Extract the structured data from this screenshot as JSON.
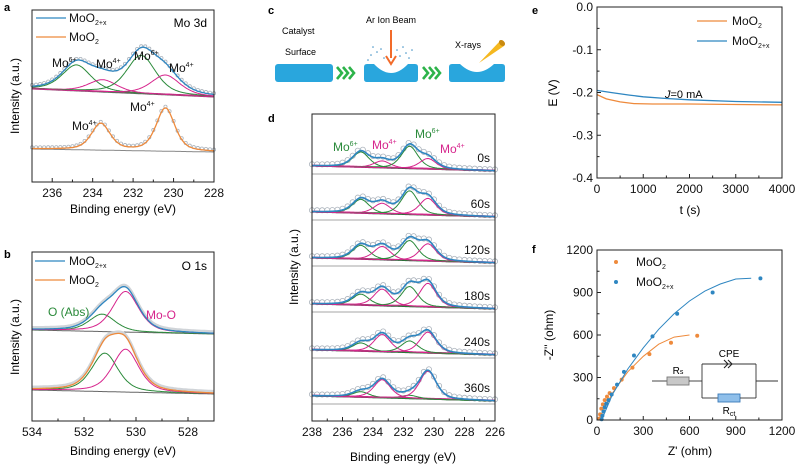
{
  "colors": {
    "blue": "#2e86c1",
    "orange": "#ee8a3c",
    "green": "#2a8a3a",
    "magenta": "#d6248c",
    "baseline": "#666666",
    "circle": "#aab2bb",
    "slab": "#29a6dd",
    "chevron": "#2db34a",
    "beam": "#f26b2a",
    "xray": "#f5b81f"
  },
  "chart_data": [
    {
      "panel": "a",
      "type": "line",
      "title": "Mo 3d",
      "xlabel": "Binding energy (eV)",
      "ylabel": "Intensity (a.u.)",
      "xlim": [
        237,
        228
      ],
      "xticks": [
        236,
        234,
        232,
        230,
        228
      ],
      "legend": {
        "position": "top-left",
        "entries": [
          {
            "name": "MoO2+x",
            "base": "MoO",
            "sub": "2+x",
            "color": "blue"
          },
          {
            "name": "MoO2",
            "base": "MoO",
            "sub": "2",
            "color": "orange"
          }
        ]
      },
      "annotations": [
        {
          "text": "Mo",
          "sup": "6+",
          "x": 234.9,
          "curve": "top"
        },
        {
          "text": "Mo",
          "sup": "4+",
          "x": 233.4,
          "curve": "top"
        },
        {
          "text": "Mo",
          "sup": "6+",
          "x": 231.6,
          "curve": "top"
        },
        {
          "text": "Mo",
          "sup": "4+",
          "x": 229.8,
          "curve": "top"
        },
        {
          "text": "Mo",
          "sup": "4+",
          "x": 233.8,
          "curve": "bottom"
        },
        {
          "text": "Mo",
          "sup": "4+",
          "x": 230.9,
          "curve": "bottom"
        }
      ],
      "stacks": [
        {
          "name": "MoO2+x",
          "fit_color": "blue",
          "peaks": [
            {
              "state": "Mo6+",
              "center": 234.8,
              "height": 0.42,
              "color": "green"
            },
            {
              "state": "Mo4+",
              "center": 233.5,
              "height": 0.2,
              "color": "magenta"
            },
            {
              "state": "Mo6+",
              "center": 231.6,
              "height": 0.62,
              "color": "green"
            },
            {
              "state": "Mo4+",
              "center": 230.4,
              "height": 0.32,
              "color": "magenta"
            }
          ]
        },
        {
          "name": "MoO2",
          "fit_color": "orange",
          "peaks": [
            {
              "state": "Mo4+",
              "center": 233.6,
              "height": 0.48,
              "color": "orange"
            },
            {
              "state": "Mo4+",
              "center": 230.4,
              "height": 0.78,
              "color": "orange"
            }
          ]
        }
      ]
    },
    {
      "panel": "b",
      "type": "line",
      "title": "O 1s",
      "xlabel": "Binding energy (eV)",
      "ylabel": "Intensity (a.u.)",
      "xlim": [
        534,
        527
      ],
      "xticks": [
        534,
        532,
        530,
        528
      ],
      "legend": {
        "position": "top-left",
        "entries": [
          {
            "name": "MoO2+x",
            "base": "MoO",
            "sub": "2+x",
            "color": "blue"
          },
          {
            "name": "MoO2",
            "base": "MoO",
            "sub": "2",
            "color": "orange"
          }
        ]
      },
      "annotations": [
        {
          "text": "O (Abs)",
          "color": "green"
        },
        {
          "text": "Mo-O",
          "color": "magenta"
        }
      ],
      "stacks": [
        {
          "name": "MoO2+x",
          "fit_color": "blue",
          "peaks": [
            {
              "state": "O (Abs)",
              "center": 531.3,
              "height": 0.3,
              "color": "green"
            },
            {
              "state": "Mo-O",
              "center": 530.4,
              "height": 0.7,
              "color": "magenta"
            }
          ]
        },
        {
          "name": "MoO2",
          "fit_color": "orange",
          "peaks": [
            {
              "state": "O (Abs)",
              "center": 531.2,
              "height": 0.7,
              "color": "green"
            },
            {
              "state": "Mo-O",
              "center": 530.4,
              "height": 0.78,
              "color": "magenta"
            }
          ]
        }
      ]
    },
    {
      "panel": "d",
      "type": "line",
      "xlabel": "Binding energy (eV)",
      "ylabel": "Intensity (a.u.)",
      "xlim": [
        238,
        226
      ],
      "xticks": [
        238,
        236,
        234,
        232,
        230,
        228,
        226
      ],
      "annotations": [
        {
          "text": "Mo",
          "sup": "6+",
          "color": "green"
        },
        {
          "text": "Mo",
          "sup": "4+",
          "color": "magenta"
        },
        {
          "text": "Mo",
          "sup": "6+",
          "color": "green"
        },
        {
          "text": "Mo",
          "sup": "4+",
          "color": "magenta"
        }
      ],
      "series": [
        {
          "label": "0s",
          "mo6_a": 0.55,
          "mo4_a": 0.25,
          "mo6_b": 0.8,
          "mo4_b": 0.38
        },
        {
          "label": "60s",
          "mo6_a": 0.5,
          "mo4_a": 0.38,
          "mo6_b": 0.85,
          "mo4_b": 0.6
        },
        {
          "label": "120s",
          "mo6_a": 0.5,
          "mo4_a": 0.48,
          "mo6_b": 0.72,
          "mo4_b": 0.62
        },
        {
          "label": "180s",
          "mo6_a": 0.4,
          "mo4_a": 0.6,
          "mo6_b": 0.72,
          "mo4_b": 0.85
        },
        {
          "label": "240s",
          "mo6_a": 0.3,
          "mo4_a": 0.62,
          "mo6_b": 0.42,
          "mo4_b": 0.75
        },
        {
          "label": "360s",
          "mo6_a": 0.2,
          "mo4_a": 0.65,
          "mo6_b": 0.12,
          "mo4_b": 1.0
        }
      ]
    },
    {
      "panel": "e",
      "type": "line",
      "xlabel": "t (s)",
      "ylabel": "E (V)",
      "xlim": [
        0,
        4000
      ],
      "ylim": [
        -0.4,
        0.0
      ],
      "xticks": [
        0,
        1000,
        2000,
        3000,
        4000
      ],
      "yticks": [
        0.0,
        -0.1,
        -0.2,
        -0.3,
        -0.4
      ],
      "ytick_labels": [
        "0.0",
        "-0.1",
        "-0.2",
        "-0.3",
        "-0.4"
      ],
      "annotation": {
        "italic": "J",
        "text": "=0 mA"
      },
      "legend": {
        "position": "top-right",
        "entries": [
          {
            "name": "MoO2",
            "base": "MoO",
            "sub": "2",
            "color": "orange"
          },
          {
            "name": "MoO2+x",
            "base": "MoO",
            "sub": "2+x",
            "color": "blue"
          }
        ]
      },
      "series": [
        {
          "name": "MoO2",
          "color": "orange",
          "x": [
            0,
            200,
            500,
            800,
            1200,
            2000,
            3000,
            4000
          ],
          "y": [
            -0.205,
            -0.215,
            -0.222,
            -0.226,
            -0.227,
            -0.227,
            -0.228,
            -0.229
          ]
        },
        {
          "name": "MoO2+x",
          "color": "blue",
          "x": [
            0,
            300,
            700,
            1000,
            1500,
            2000,
            3000,
            4000
          ],
          "y": [
            -0.195,
            -0.2,
            -0.206,
            -0.21,
            -0.214,
            -0.217,
            -0.221,
            -0.223
          ]
        }
      ]
    },
    {
      "panel": "f",
      "type": "scatter",
      "xlabel": "Z' (ohm)",
      "ylabel": "-Z'' (ohm)",
      "xlim": [
        0,
        1200
      ],
      "ylim": [
        0,
        1200
      ],
      "xticks": [
        0,
        300,
        600,
        900,
        1200
      ],
      "yticks": [
        0,
        300,
        600,
        900,
        1200
      ],
      "legend": {
        "position": "top-left",
        "entries": [
          {
            "name": "MoO2",
            "base": "MoO",
            "sub": "2",
            "color": "orange"
          },
          {
            "name": "MoO2+x",
            "base": "MoO",
            "sub": "2+x",
            "color": "blue"
          }
        ]
      },
      "inset": {
        "resistor_s": "R",
        "resistor_s_sub": "s",
        "cpe": "CPE",
        "resistor_ct": "R",
        "resistor_ct_sub": "ct"
      },
      "series": [
        {
          "name": "MoO2",
          "color": "orange",
          "x": [
            15,
            20,
            28,
            38,
            50,
            65,
            82,
            110,
            160,
            230,
            340,
            480,
            650
          ],
          "y": [
            10,
            40,
            80,
            110,
            140,
            165,
            190,
            225,
            285,
            370,
            465,
            545,
            595
          ],
          "fit": {
            "x": [
              10,
              100,
              200,
              300,
              400,
              500,
              600
            ],
            "y": [
              0,
              190,
              340,
              450,
              535,
              585,
              600
            ]
          }
        },
        {
          "name": "MoO2+x",
          "color": "blue",
          "x": [
            30,
            35,
            42,
            50,
            60,
            75,
            95,
            130,
            175,
            240,
            360,
            520,
            750,
            1060
          ],
          "y": [
            5,
            30,
            60,
            90,
            115,
            140,
            180,
            250,
            340,
            455,
            590,
            750,
            900,
            1000
          ],
          "fit": {
            "x": [
              30,
              100,
              200,
              300,
              400,
              500,
              600,
              700,
              800,
              900,
              1000
            ],
            "y": [
              0,
              180,
              360,
              510,
              640,
              750,
              840,
              910,
              960,
              995,
              1000
            ]
          }
        }
      ]
    }
  ],
  "schematic": {
    "panel": "c",
    "labels": {
      "surface_line1": "Catalyst",
      "surface_line2": "Surface",
      "beam": "Ar Ion Beam",
      "xrays": "X-rays"
    }
  },
  "panel_letters": [
    "a",
    "b",
    "c",
    "d",
    "e",
    "f"
  ]
}
